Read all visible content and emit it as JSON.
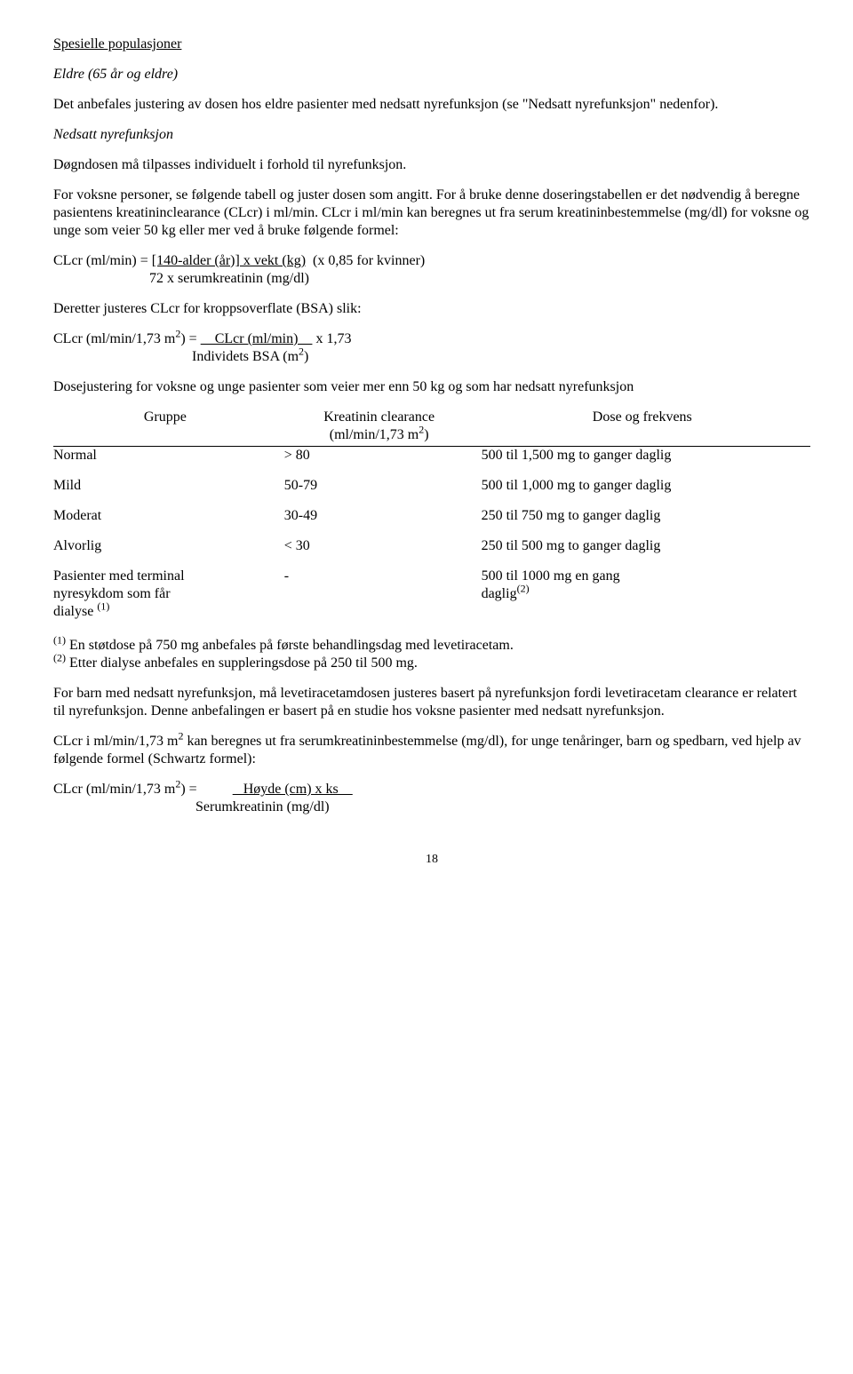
{
  "heading": "Spesielle populasjoner",
  "subheading1": "Eldre (65 år og eldre)",
  "para1": "Det anbefales justering av dosen hos eldre pasienter med nedsatt nyrefunksjon (se \"Nedsatt nyrefunksjon\" nedenfor).",
  "subheading2": "Nedsatt nyrefunksjon",
  "para2": "Døgndosen må tilpasses individuelt i forhold til nyrefunksjon.",
  "para3": "For voksne personer, se følgende tabell og juster dosen som angitt. For å bruke denne doseringstabellen er det nødvendig å beregne pasientens kreatininclearance (CLcr) i ml/min. CLcr i ml/min kan beregnes ut fra serum kreatininbestemmelse (mg/dl) for voksne og unge som veier 50 kg eller mer ved å bruke følgende formel:",
  "formula1_l1_a": "CLcr (ml/min) = ",
  "formula1_l1_b": "[140-alder (år)] x vekt (kg)",
  "formula1_l1_c": "  (x 0,85 for kvinner)",
  "formula1_l2": "                           72 x serumkreatinin (mg/dl)",
  "para4": "Deretter justeres CLcr for kroppsoverflate (BSA) slik:",
  "formula2_l1_a": "CLcr (ml/min/1,73 m",
  "formula2_l1_b": ") = ",
  "formula2_l1_c": "    CLcr (ml/min)    ",
  "formula2_l1_d": " x 1,73",
  "formula2_l2": "                                       Individets BSA (m",
  "formula2_l2_end": ")",
  "table_intro": "Dosejustering for voksne og unge pasienter som veier mer enn 50 kg og som har nedsatt nyrefunksjon",
  "table": {
    "headers": {
      "group": "Gruppe",
      "clcr_l1": "Kreatinin clearance",
      "clcr_l2a": "(ml/min/1,73 m",
      "clcr_l2b": ")",
      "dose": "Dose og frekvens"
    },
    "rows": [
      {
        "group": "Normal",
        "clcr": "> 80",
        "dose": "500 til 1,500 mg to ganger daglig"
      },
      {
        "group": "Mild",
        "clcr": "50-79",
        "dose": "500 til 1,000 mg to ganger daglig"
      },
      {
        "group": "Moderat",
        "clcr": "30-49",
        "dose": "250 til 750 mg to ganger daglig"
      },
      {
        "group": "Alvorlig",
        "clcr": "< 30",
        "dose": "250 til 500 mg to ganger daglig"
      }
    ],
    "last": {
      "group_l1": "Pasienter med terminal",
      "group_l2": "nyresykdom som får",
      "group_l3a": "dialyse ",
      "clcr": "-",
      "dose_a": "500 til 1000 mg en gang",
      "dose_b": "daglig"
    }
  },
  "footnote1_a": " En støtdose på 750 mg anbefales på første behandlingsdag med levetiracetam.",
  "footnote2_a": " Etter dialyse anbefales en suppleringsdose på 250 til 500 mg.",
  "para5": "For barn med nedsatt nyrefunksjon, må levetiracetamdosen justeres basert på nyrefunksjon fordi levetiracetam clearance er relatert til nyrefunksjon. Denne anbefalingen er basert på en studie hos voksne pasienter med nedsatt nyrefunksjon.",
  "para6_a": "CLcr i ml/min/1,73 m",
  "para6_b": " kan beregnes ut fra serumkreatininbestemmelse (mg/dl), for unge tenåringer, barn og spedbarn, ved hjelp av følgende formel (Schwartz formel):",
  "formula3_l1_a": "CLcr (ml/min/1,73 m",
  "formula3_l1_b": ") =          ",
  "formula3_l1_c": "   Høyde (cm) x ks    ",
  "formula3_l2": "                                        Serumkreatinin (mg/dl)",
  "sup2": "2",
  "sup_p1": "(1)",
  "sup_p2": "(2)",
  "page_num": "18"
}
